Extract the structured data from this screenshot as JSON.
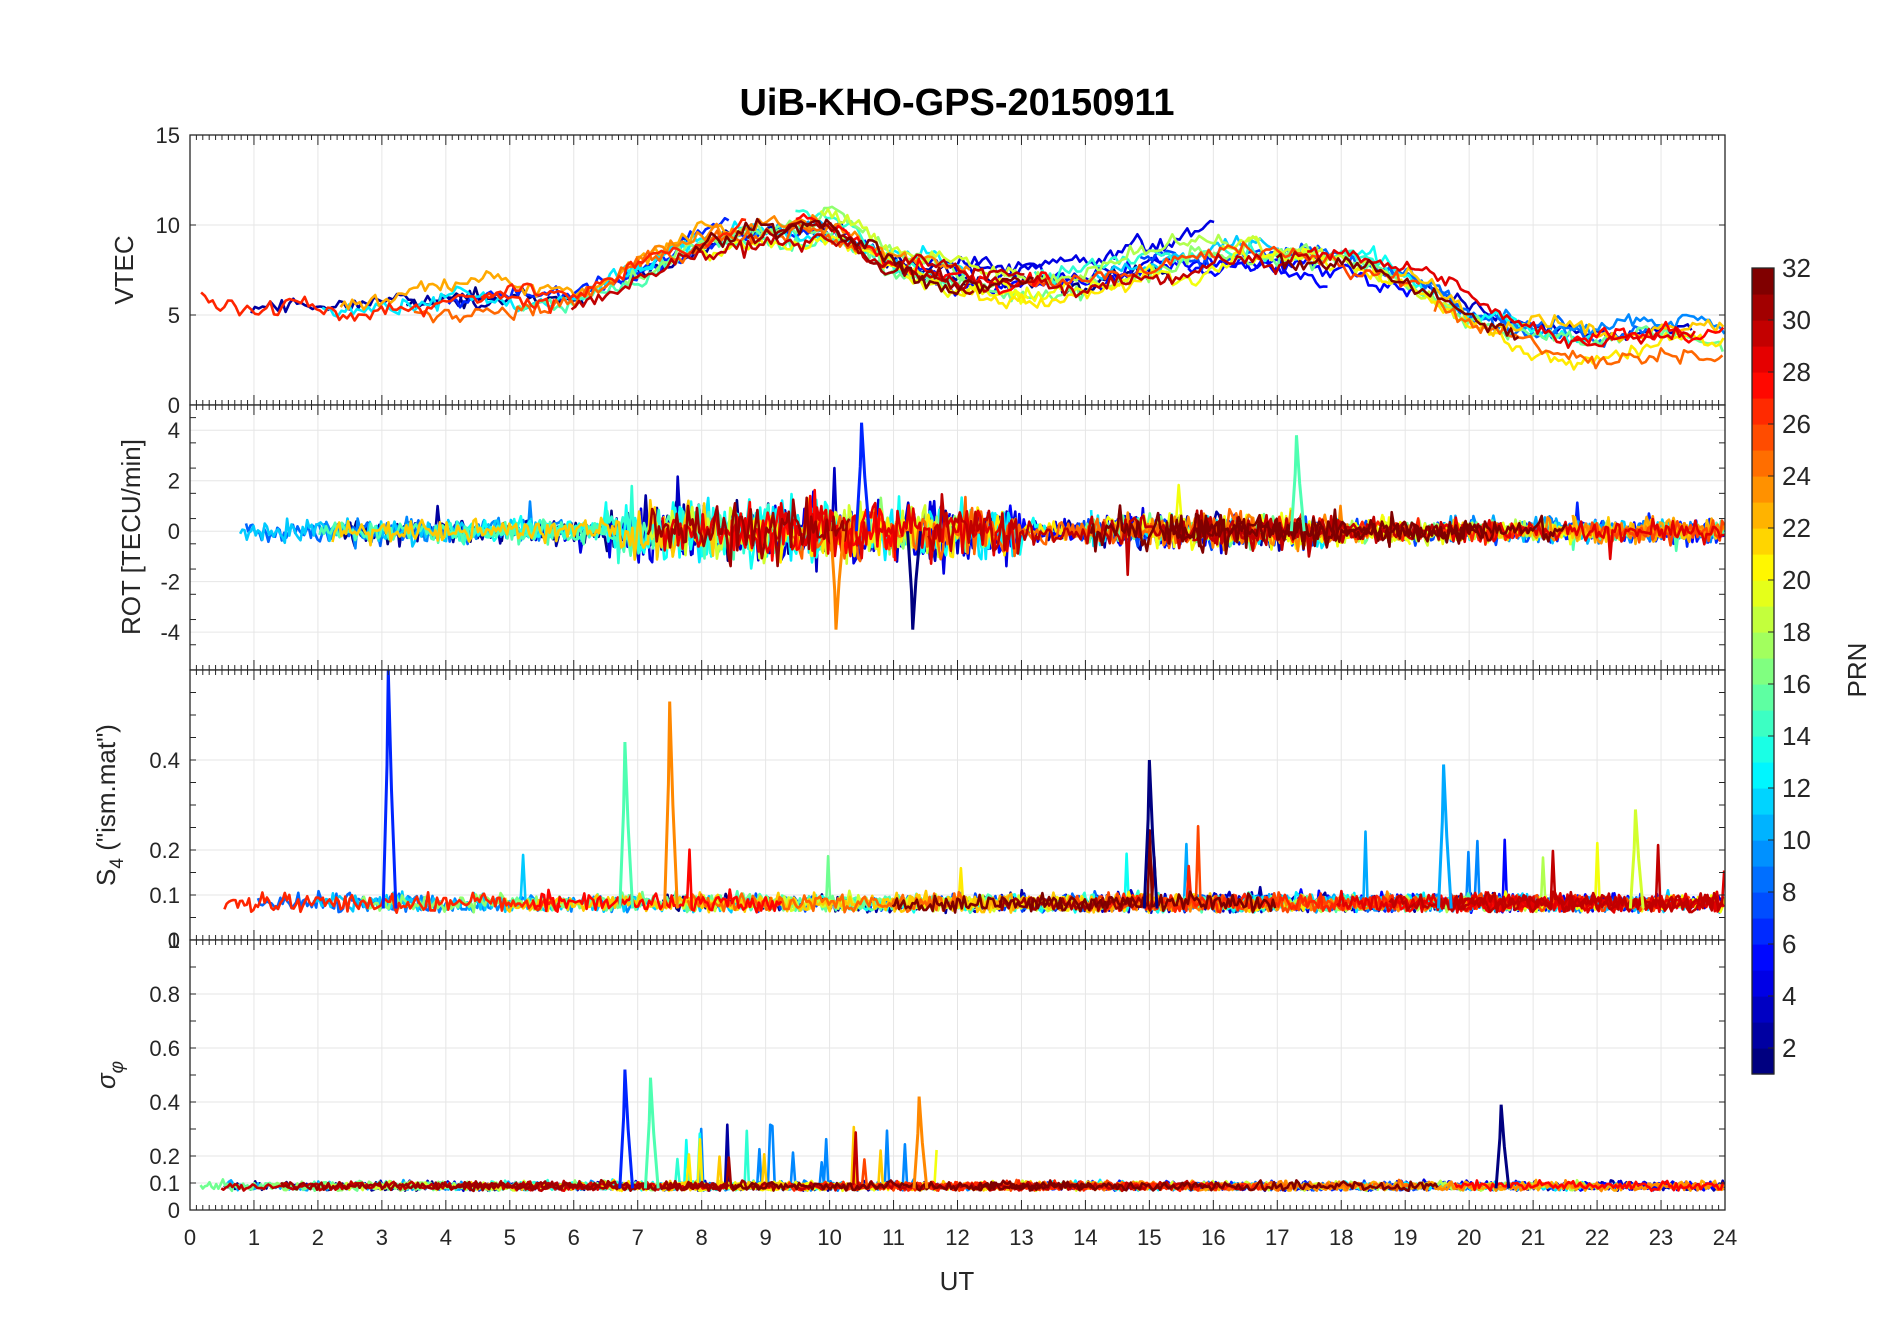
{
  "figure": {
    "title": "UiB-KHO-GPS-20150911"
  },
  "x_axis": {
    "label": "UT",
    "range": [
      0,
      24
    ],
    "tick_labels": [
      "0",
      "1",
      "2",
      "3",
      "4",
      "5",
      "6",
      "7",
      "8",
      "9",
      "10",
      "11",
      "12",
      "13",
      "14",
      "15",
      "16",
      "17",
      "18",
      "19",
      "20",
      "21",
      "22",
      "23",
      "24"
    ]
  },
  "chart_data": [
    {
      "type": "line",
      "id": "vtec",
      "ylabel": "VTEC",
      "ylim": [
        0,
        15
      ],
      "ytick_labels": [
        "0",
        "5",
        "10",
        "15"
      ],
      "grid": true,
      "series_summary": {
        "x": [
          0,
          1,
          2,
          3,
          4,
          5,
          6,
          7,
          8,
          9,
          10,
          11,
          12,
          13,
          14,
          15,
          16,
          17,
          18,
          19,
          20,
          21,
          22,
          23,
          24
        ],
        "values": [
          6,
          5,
          5.5,
          5.5,
          6,
          6,
          6,
          7.5,
          9,
          10,
          10,
          8,
          7,
          7,
          7,
          8,
          8.5,
          8.5,
          8,
          7,
          5,
          4,
          3.5,
          4,
          4
        ]
      }
    },
    {
      "type": "line",
      "id": "rot",
      "ylabel": "ROT [TECU/min]",
      "ylim": [
        -5.5,
        5
      ],
      "ytick_labels": [
        "-4",
        "-2",
        "0",
        "2",
        "4"
      ],
      "grid": true,
      "notable_peaks": {
        "x": [
          10.5,
          17.3,
          10.1,
          11.3
        ],
        "values": [
          4.3,
          3.8,
          -3.9,
          -3.9
        ]
      }
    },
    {
      "type": "line",
      "id": "s4",
      "ylabel": "S4 (\"ism.mat\")",
      "ylabel_main": "S",
      "ylabel_sub": "4",
      "ylabel_rest": " (\"ism.mat\")",
      "ylim": [
        0,
        0.6
      ],
      "ytick_labels": [
        "0",
        "0.1",
        "0.2",
        "0.4"
      ],
      "grid": true,
      "notable_peaks": {
        "x": [
          3.1,
          6.8,
          7.5,
          15.0,
          19.6,
          22.6
        ],
        "values": [
          0.6,
          0.44,
          0.53,
          0.4,
          0.39,
          0.29
        ]
      }
    },
    {
      "type": "line",
      "id": "sigma-phi",
      "ylabel": "σφ",
      "ylabel_main": "σ",
      "ylabel_sub": "φ",
      "ylim": [
        0,
        1
      ],
      "ytick_labels": [
        "0",
        "0.1",
        "0.2",
        "0.4",
        "0.6",
        "0.8"
      ],
      "grid": true,
      "notable_peaks": {
        "x": [
          6.8,
          7.2,
          11.4,
          20.5
        ],
        "values": [
          0.52,
          0.49,
          0.42,
          0.39
        ]
      }
    }
  ],
  "colorbar": {
    "label": "PRN",
    "range": [
      1,
      32
    ],
    "tick_labels": [
      "2",
      "4",
      "6",
      "8",
      "10",
      "12",
      "14",
      "16",
      "18",
      "20",
      "22",
      "24",
      "26",
      "28",
      "30",
      "32"
    ],
    "colormap": "jet"
  },
  "colors": {
    "grid": "#e6e6e6",
    "axis": "#262626",
    "jet_low": "#00008f",
    "jet_high": "#800000"
  }
}
